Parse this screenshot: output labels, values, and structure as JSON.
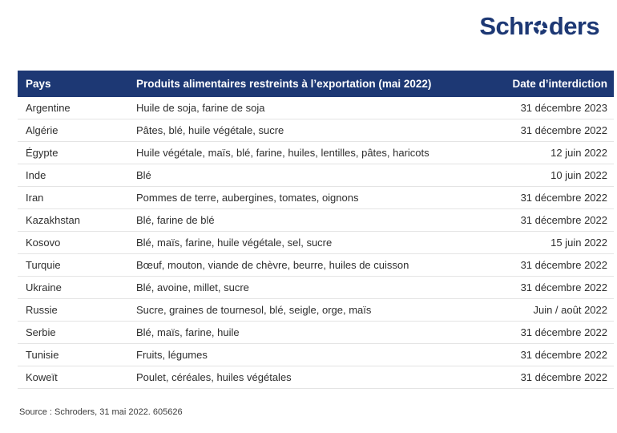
{
  "theme": {
    "navy": "#1d3874",
    "divider": "#e4e4e4",
    "body_text": "#2e2e2e"
  },
  "logo": {
    "full_name": "Schroders",
    "text_before_o": "Schr",
    "text_after_o": "ders"
  },
  "table": {
    "headers": {
      "pays": "Pays",
      "produits": "Produits alimentaires restreints à l’exportation (mai 2022)",
      "date": "Date d’interdiction"
    },
    "rows": [
      {
        "pays": "Argentine",
        "produits": "Huile de soja, farine de soja",
        "date": "31 décembre 2023"
      },
      {
        "pays": "Algérie",
        "produits": "Pâtes, blé, huile végétale, sucre",
        "date": "31 décembre 2022"
      },
      {
        "pays": "Égypte",
        "produits": "Huile végétale, maïs, blé, farine, huiles, lentilles, pâtes, haricots",
        "date": "12 juin 2022"
      },
      {
        "pays": "Inde",
        "produits": "Blé",
        "date": "10 juin 2022"
      },
      {
        "pays": "Iran",
        "produits": "Pommes de terre, aubergines, tomates, oignons",
        "date": "31 décembre 2022"
      },
      {
        "pays": "Kazakhstan",
        "produits": "Blé, farine de blé",
        "date": "31 décembre 2022"
      },
      {
        "pays": "Kosovo",
        "produits": "Blé, maïs, farine, huile végétale, sel, sucre",
        "date": "15 juin 2022"
      },
      {
        "pays": "Turquie",
        "produits": "Bœuf, mouton, viande de chèvre, beurre, huiles de cuisson",
        "date": "31 décembre 2022"
      },
      {
        "pays": "Ukraine",
        "produits": "Blé, avoine, millet, sucre",
        "date": "31 décembre 2022"
      },
      {
        "pays": "Russie",
        "produits": "Sucre, graines de tournesol, blé, seigle, orge, maïs",
        "date": "Juin / août 2022"
      },
      {
        "pays": "Serbie",
        "produits": "Blé, maïs, farine, huile",
        "date": "31 décembre 2022"
      },
      {
        "pays": "Tunisie",
        "produits": "Fruits, légumes",
        "date": "31 décembre 2022"
      },
      {
        "pays": "Koweït",
        "produits": "Poulet, céréales, huiles végétales",
        "date": "31 décembre 2022"
      }
    ]
  },
  "footer": {
    "source": "Source : Schroders, 31 mai 2022. 605626"
  }
}
